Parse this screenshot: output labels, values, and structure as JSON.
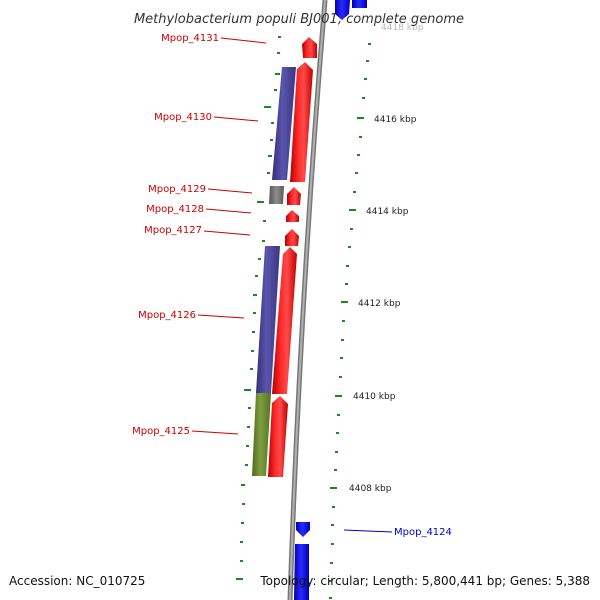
{
  "title": "Methylobacterium populi BJ001, complete genome",
  "accession": "Accession: NC_010725",
  "topology": "Topology: circular; Length: 5,800,441 bp; Genes: 5,388",
  "colors": {
    "forward": "#ee1111",
    "reverse": "#1515ee",
    "cog_purple": "#4a4595",
    "cog_green": "#6b8a30",
    "cog_gray": "#7a7a7a",
    "label_forward": "#cc0000",
    "label_reverse": "#0000cc",
    "tick": "#1a8a1a",
    "backbone": "#8a8a8a"
  },
  "gene_labels": [
    {
      "id": "lbl-4131",
      "text": "Mpop_4131",
      "strand": "forward"
    },
    {
      "id": "lbl-4130",
      "text": "Mpop_4130",
      "strand": "forward"
    },
    {
      "id": "lbl-4129",
      "text": "Mpop_4129",
      "strand": "forward"
    },
    {
      "id": "lbl-4128",
      "text": "Mpop_4128",
      "strand": "forward"
    },
    {
      "id": "lbl-4127",
      "text": "Mpop_4127",
      "strand": "forward"
    },
    {
      "id": "lbl-4126",
      "text": "Mpop_4126",
      "strand": "forward"
    },
    {
      "id": "lbl-4125",
      "text": "Mpop_4125",
      "strand": "forward"
    },
    {
      "id": "lbl-4124",
      "text": "Mpop_4124",
      "strand": "reverse"
    }
  ],
  "scale_labels": [
    "4418 kbp",
    "4416 kbp",
    "4414 kbp",
    "4412 kbp",
    "4410 kbp",
    "4408 kbp"
  ]
}
